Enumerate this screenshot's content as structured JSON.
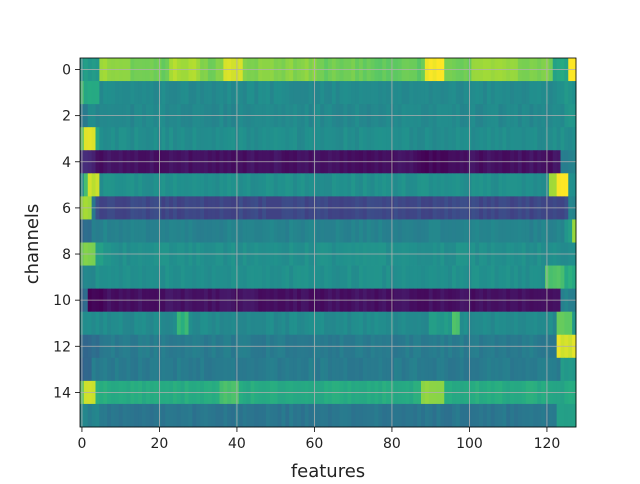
{
  "chart_data": {
    "type": "heatmap",
    "title": "",
    "xlabel": "features",
    "ylabel": "channels",
    "xlim": [
      -0.5,
      127.5
    ],
    "ylim": [
      15.5,
      -0.5
    ],
    "n_rows": 16,
    "n_cols": 128,
    "x_ticks": [
      0,
      20,
      40,
      60,
      80,
      100,
      120
    ],
    "y_ticks": [
      0,
      2,
      4,
      6,
      8,
      10,
      12,
      14
    ],
    "x_tick_labels": [
      "0",
      "20",
      "40",
      "60",
      "80",
      "100",
      "120"
    ],
    "y_tick_labels": [
      "0",
      "2",
      "4",
      "6",
      "8",
      "10",
      "12",
      "14"
    ],
    "colormap": "viridis",
    "grid": true,
    "value_range": [
      0,
      1
    ],
    "rows": [
      {
        "channel": 0,
        "base": 0.72,
        "segments": [
          [
            0,
            4,
            0.55
          ],
          [
            5,
            12,
            0.85
          ],
          [
            13,
            22,
            0.78
          ],
          [
            23,
            30,
            0.88
          ],
          [
            31,
            36,
            0.8
          ],
          [
            37,
            41,
            0.93
          ],
          [
            42,
            60,
            0.82
          ],
          [
            61,
            72,
            0.78
          ],
          [
            73,
            88,
            0.76
          ],
          [
            89,
            93,
            1.0
          ],
          [
            94,
            100,
            0.78
          ],
          [
            101,
            112,
            0.84
          ],
          [
            113,
            121,
            0.8
          ],
          [
            122,
            125,
            0.6
          ],
          [
            126,
            127,
            1.0
          ]
        ]
      },
      {
        "channel": 1,
        "base": 0.48,
        "segments": [
          [
            0,
            0,
            0.7
          ],
          [
            1,
            4,
            0.62
          ],
          [
            124,
            127,
            0.52
          ]
        ]
      },
      {
        "channel": 2,
        "base": 0.47,
        "segments": [
          [
            0,
            1,
            0.4
          ],
          [
            125,
            127,
            0.52
          ]
        ]
      },
      {
        "channel": 3,
        "base": 0.49,
        "segments": [
          [
            0,
            0,
            0.75
          ],
          [
            1,
            3,
            0.95
          ],
          [
            4,
            4,
            0.6
          ],
          [
            124,
            127,
            0.5
          ]
        ]
      },
      {
        "channel": 4,
        "base": 0.05,
        "segments": [
          [
            0,
            3,
            0.12
          ],
          [
            88,
            95,
            0.02
          ],
          [
            124,
            127,
            0.45
          ]
        ]
      },
      {
        "channel": 5,
        "base": 0.5,
        "segments": [
          [
            1,
            1,
            0.7
          ],
          [
            2,
            4,
            0.92
          ],
          [
            121,
            122,
            0.85
          ],
          [
            123,
            125,
            1.0
          ],
          [
            126,
            127,
            0.5
          ]
        ]
      },
      {
        "channel": 6,
        "base": 0.22,
        "segments": [
          [
            0,
            2,
            0.85
          ],
          [
            3,
            3,
            0.4
          ],
          [
            126,
            127,
            0.45
          ]
        ]
      },
      {
        "channel": 7,
        "base": 0.45,
        "segments": [
          [
            0,
            2,
            0.35
          ],
          [
            125,
            126,
            0.55
          ],
          [
            127,
            127,
            0.85
          ]
        ]
      },
      {
        "channel": 8,
        "base": 0.5,
        "segments": [
          [
            0,
            3,
            0.8
          ],
          [
            4,
            5,
            0.55
          ]
        ]
      },
      {
        "channel": 9,
        "base": 0.5,
        "segments": [
          [
            0,
            3,
            0.45
          ],
          [
            120,
            124,
            0.72
          ],
          [
            125,
            127,
            0.62
          ]
        ]
      },
      {
        "channel": 10,
        "base": 0.05,
        "segments": [
          [
            0,
            1,
            0.35
          ],
          [
            2,
            5,
            0.02
          ],
          [
            124,
            127,
            0.45
          ]
        ]
      },
      {
        "channel": 11,
        "base": 0.48,
        "segments": [
          [
            25,
            27,
            0.66
          ],
          [
            90,
            95,
            0.55
          ],
          [
            96,
            97,
            0.72
          ],
          [
            123,
            126,
            0.75
          ],
          [
            127,
            127,
            0.55
          ]
        ]
      },
      {
        "channel": 12,
        "base": 0.42,
        "segments": [
          [
            0,
            4,
            0.35
          ],
          [
            123,
            127,
            0.95
          ]
        ]
      },
      {
        "channel": 13,
        "base": 0.42,
        "segments": [
          [
            0,
            2,
            0.32
          ],
          [
            124,
            127,
            0.55
          ]
        ]
      },
      {
        "channel": 14,
        "base": 0.62,
        "segments": [
          [
            0,
            0,
            0.75
          ],
          [
            1,
            3,
            0.95
          ],
          [
            4,
            8,
            0.62
          ],
          [
            36,
            40,
            0.7
          ],
          [
            88,
            93,
            0.82
          ],
          [
            120,
            124,
            0.6
          ]
        ]
      },
      {
        "channel": 15,
        "base": 0.4,
        "segments": [
          [
            0,
            4,
            0.45
          ],
          [
            123,
            127,
            0.55
          ]
        ]
      }
    ]
  }
}
